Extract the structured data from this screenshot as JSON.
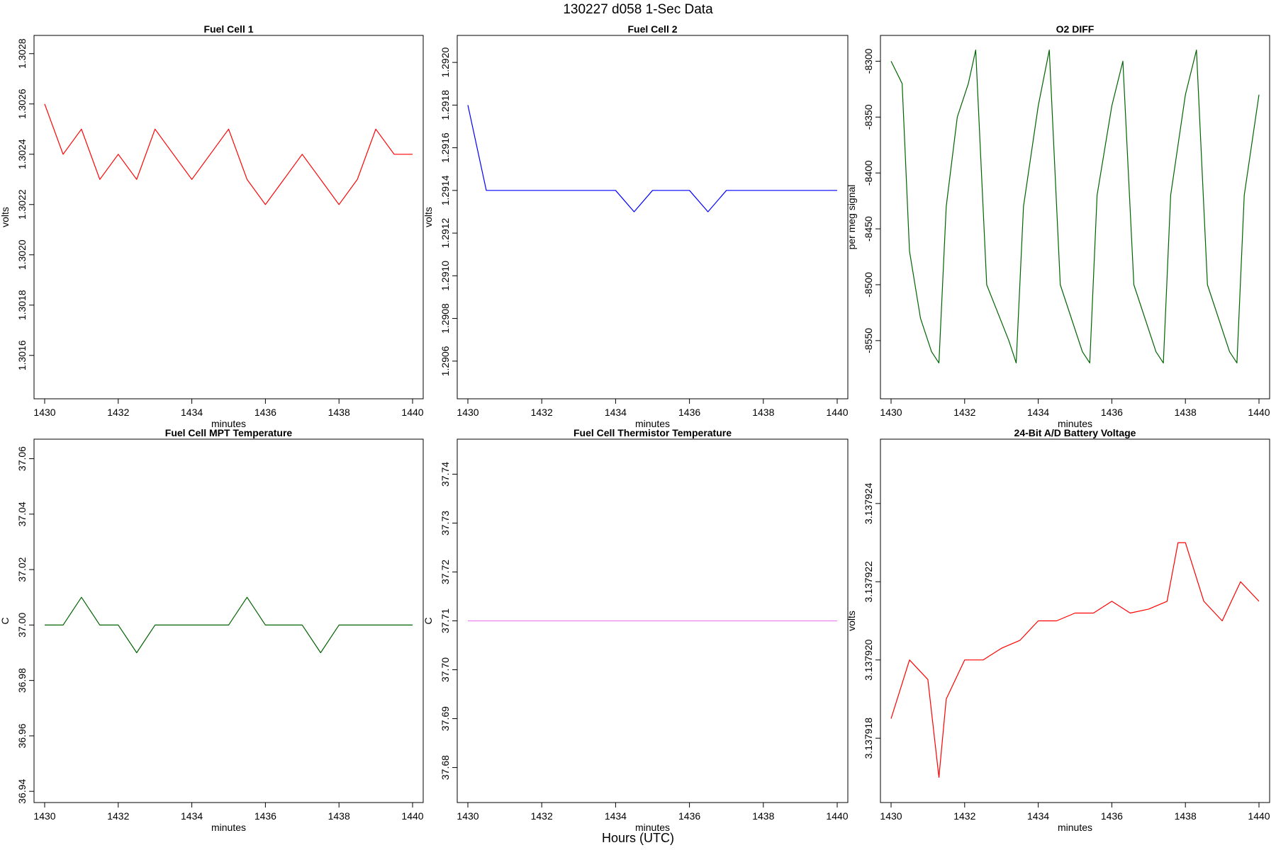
{
  "figure": {
    "suptitle": "130227   d058   1-Sec Data",
    "xlabel": "Hours (UTC)"
  },
  "chart_data": [
    {
      "type": "line",
      "title": "Fuel Cell 1",
      "xlabel": "minutes",
      "ylabel": "volts",
      "color": "#ff0000",
      "xlim": [
        1430,
        1440
      ],
      "ylim": [
        1.30145,
        1.30285
      ],
      "x_ticks": [
        "1430",
        "1432",
        "1434",
        "1436",
        "1438",
        "1440"
      ],
      "y_ticks": [
        1.3016,
        1.3018,
        1.302,
        1.3022,
        1.3024,
        1.3026,
        1.3028
      ],
      "y_tick_labels": [
        "1.3016",
        "1.3018",
        "1.3020",
        "1.3022",
        "1.3024",
        "1.3026",
        "1.3028"
      ],
      "series": [
        {
          "x": [
            1430.0,
            1430.5,
            1431.0,
            1431.5,
            1432.0,
            1432.5,
            1433.0,
            1433.5,
            1434.0,
            1434.5,
            1435.0,
            1435.5,
            1436.0,
            1436.5,
            1437.0,
            1437.5,
            1438.0,
            1438.5,
            1439.0,
            1439.5,
            1440.0
          ],
          "values": [
            1.3026,
            1.3024,
            1.3025,
            1.3023,
            1.3024,
            1.3023,
            1.3025,
            1.3024,
            1.3023,
            1.3024,
            1.3025,
            1.3023,
            1.3022,
            1.3023,
            1.3024,
            1.3023,
            1.3022,
            1.3023,
            1.3025,
            1.3024,
            1.3024
          ]
        }
      ]
    },
    {
      "type": "line",
      "title": "Fuel Cell 2",
      "xlabel": "minutes",
      "ylabel": "volts",
      "color": "#0000ff",
      "xlim": [
        1430,
        1440
      ],
      "ylim": [
        1.29045,
        1.2921
      ],
      "x_ticks": [
        "1430",
        "1432",
        "1434",
        "1436",
        "1438",
        "1440"
      ],
      "y_ticks": [
        1.2906,
        1.2908,
        1.291,
        1.2912,
        1.2914,
        1.2916,
        1.2918,
        1.292
      ],
      "y_tick_labels": [
        "1.2906",
        "1.2908",
        "1.2910",
        "1.2912",
        "1.2914",
        "1.2916",
        "1.2918",
        "1.2920"
      ],
      "series": [
        {
          "x": [
            1430.0,
            1430.5,
            1431.0,
            1431.5,
            1432.0,
            1432.5,
            1433.0,
            1433.5,
            1434.0,
            1434.5,
            1435.0,
            1435.5,
            1436.0,
            1436.5,
            1437.0,
            1437.5,
            1438.0,
            1438.5,
            1439.0,
            1439.5,
            1440.0
          ],
          "values": [
            1.2918,
            1.2914,
            1.2914,
            1.2914,
            1.2914,
            1.2914,
            1.2914,
            1.2914,
            1.2914,
            1.2913,
            1.2914,
            1.2914,
            1.2914,
            1.2913,
            1.2914,
            1.2914,
            1.2914,
            1.2914,
            1.2914,
            1.2914,
            1.2914
          ]
        }
      ]
    },
    {
      "type": "line",
      "title": "O2 DIFF",
      "xlabel": "minutes",
      "ylabel": "per meg signal",
      "color": "#006400",
      "xlim": [
        1430,
        1440
      ],
      "ylim": [
        -8597,
        -8282
      ],
      "x_ticks": [
        "1430",
        "1432",
        "1434",
        "1436",
        "1438",
        "1440"
      ],
      "y_ticks": [
        -8300,
        -8350,
        -8400,
        -8450,
        -8500,
        -8550
      ],
      "y_tick_labels": [
        "-8300",
        "-8350",
        "-8400",
        "-8450",
        "-8500",
        "-8550"
      ],
      "series": [
        {
          "x": [
            1430.0,
            1430.3,
            1430.5,
            1430.8,
            1431.1,
            1431.3,
            1431.5,
            1431.8,
            1432.1,
            1432.3,
            1432.6,
            1433.2,
            1433.4,
            1433.6,
            1434.0,
            1434.3,
            1434.6,
            1435.2,
            1435.4,
            1435.6,
            1436.0,
            1436.3,
            1436.6,
            1437.2,
            1437.4,
            1437.6,
            1438.0,
            1438.3,
            1438.6,
            1439.2,
            1439.4,
            1439.6,
            1440.0
          ],
          "values": [
            -8300,
            -8320,
            -8470,
            -8530,
            -8560,
            -8570,
            -8430,
            -8350,
            -8320,
            -8290,
            -8500,
            -8550,
            -8570,
            -8430,
            -8340,
            -8290,
            -8500,
            -8560,
            -8570,
            -8420,
            -8340,
            -8300,
            -8500,
            -8560,
            -8570,
            -8420,
            -8330,
            -8290,
            -8500,
            -8560,
            -8570,
            -8420,
            -8330
          ]
        }
      ]
    },
    {
      "type": "line",
      "title": "Fuel Cell MPT Temperature",
      "xlabel": "minutes",
      "ylabel": "C",
      "color": "#006400",
      "xlim": [
        1430,
        1440
      ],
      "ylim": [
        36.938,
        37.065
      ],
      "x_ticks": [
        "1430",
        "1432",
        "1434",
        "1436",
        "1438",
        "1440"
      ],
      "y_ticks": [
        36.94,
        36.96,
        36.98,
        37.0,
        37.02,
        37.04,
        37.06
      ],
      "y_tick_labels": [
        "36.94",
        "36.96",
        "36.98",
        "37.00",
        "37.02",
        "37.04",
        "37.06"
      ],
      "series": [
        {
          "x": [
            1430.0,
            1430.5,
            1431.0,
            1431.5,
            1432.0,
            1432.5,
            1433.0,
            1433.5,
            1434.0,
            1434.5,
            1435.0,
            1435.5,
            1436.0,
            1436.5,
            1437.0,
            1437.5,
            1438.0,
            1438.5,
            1439.0,
            1439.5,
            1440.0
          ],
          "values": [
            37.0,
            37.0,
            37.01,
            37.0,
            37.0,
            36.99,
            37.0,
            37.0,
            37.0,
            37.0,
            37.0,
            37.01,
            37.0,
            37.0,
            37.0,
            36.99,
            37.0,
            37.0,
            37.0,
            37.0,
            37.0
          ]
        }
      ]
    },
    {
      "type": "line",
      "title": "Fuel Cell Thermistor Temperature",
      "xlabel": "minutes",
      "ylabel": "C",
      "color": "#ee82ee",
      "xlim": [
        1430,
        1440
      ],
      "ylim": [
        37.674,
        37.746
      ],
      "x_ticks": [
        "1430",
        "1432",
        "1434",
        "1436",
        "1438",
        "1440"
      ],
      "y_ticks": [
        37.68,
        37.69,
        37.7,
        37.71,
        37.72,
        37.73,
        37.74
      ],
      "y_tick_labels": [
        "37.68",
        "37.69",
        "37.70",
        "37.71",
        "37.72",
        "37.73",
        "37.74"
      ],
      "series": [
        {
          "x": [
            1430.0,
            1430.5,
            1431.0,
            1431.5,
            1432.0,
            1432.5,
            1433.0,
            1433.5,
            1434.0,
            1434.5,
            1435.0,
            1435.5,
            1436.0,
            1436.5,
            1437.0,
            1437.5,
            1438.0,
            1438.5,
            1439.0,
            1439.5,
            1440.0
          ],
          "values": [
            37.71,
            37.71,
            37.71,
            37.71,
            37.71,
            37.71,
            37.71,
            37.71,
            37.71,
            37.71,
            37.71,
            37.71,
            37.71,
            37.71,
            37.71,
            37.71,
            37.71,
            37.71,
            37.71,
            37.71,
            37.71
          ]
        }
      ]
    },
    {
      "type": "line",
      "title": "24-Bit A/D Battery Voltage",
      "xlabel": "minutes",
      "ylabel": "volts",
      "color": "#ff0000",
      "xlim": [
        1430,
        1440
      ],
      "ylim": [
        3.1379165,
        3.1379255
      ],
      "x_ticks": [
        "1430",
        "1432",
        "1434",
        "1436",
        "1438",
        "1440"
      ],
      "y_ticks": [
        3.137918,
        3.13792,
        3.137922,
        3.137924
      ],
      "y_tick_labels": [
        "3.137918",
        "3.137920",
        "3.137922",
        "3.137924"
      ],
      "series": [
        {
          "x": [
            1430.0,
            1430.5,
            1431.0,
            1431.3,
            1431.5,
            1432.0,
            1432.5,
            1433.0,
            1433.5,
            1434.0,
            1434.5,
            1435.0,
            1435.5,
            1436.0,
            1436.5,
            1437.0,
            1437.5,
            1437.8,
            1438.0,
            1438.5,
            1439.0,
            1439.5,
            1440.0
          ],
          "values": [
            3.1379185,
            3.13792,
            3.1379195,
            3.137917,
            3.137919,
            3.13792,
            3.13792,
            3.1379203,
            3.1379205,
            3.137921,
            3.137921,
            3.1379212,
            3.1379212,
            3.1379215,
            3.1379212,
            3.1379213,
            3.1379215,
            3.137923,
            3.137923,
            3.1379215,
            3.137921,
            3.137922,
            3.1379215
          ]
        }
      ]
    }
  ]
}
